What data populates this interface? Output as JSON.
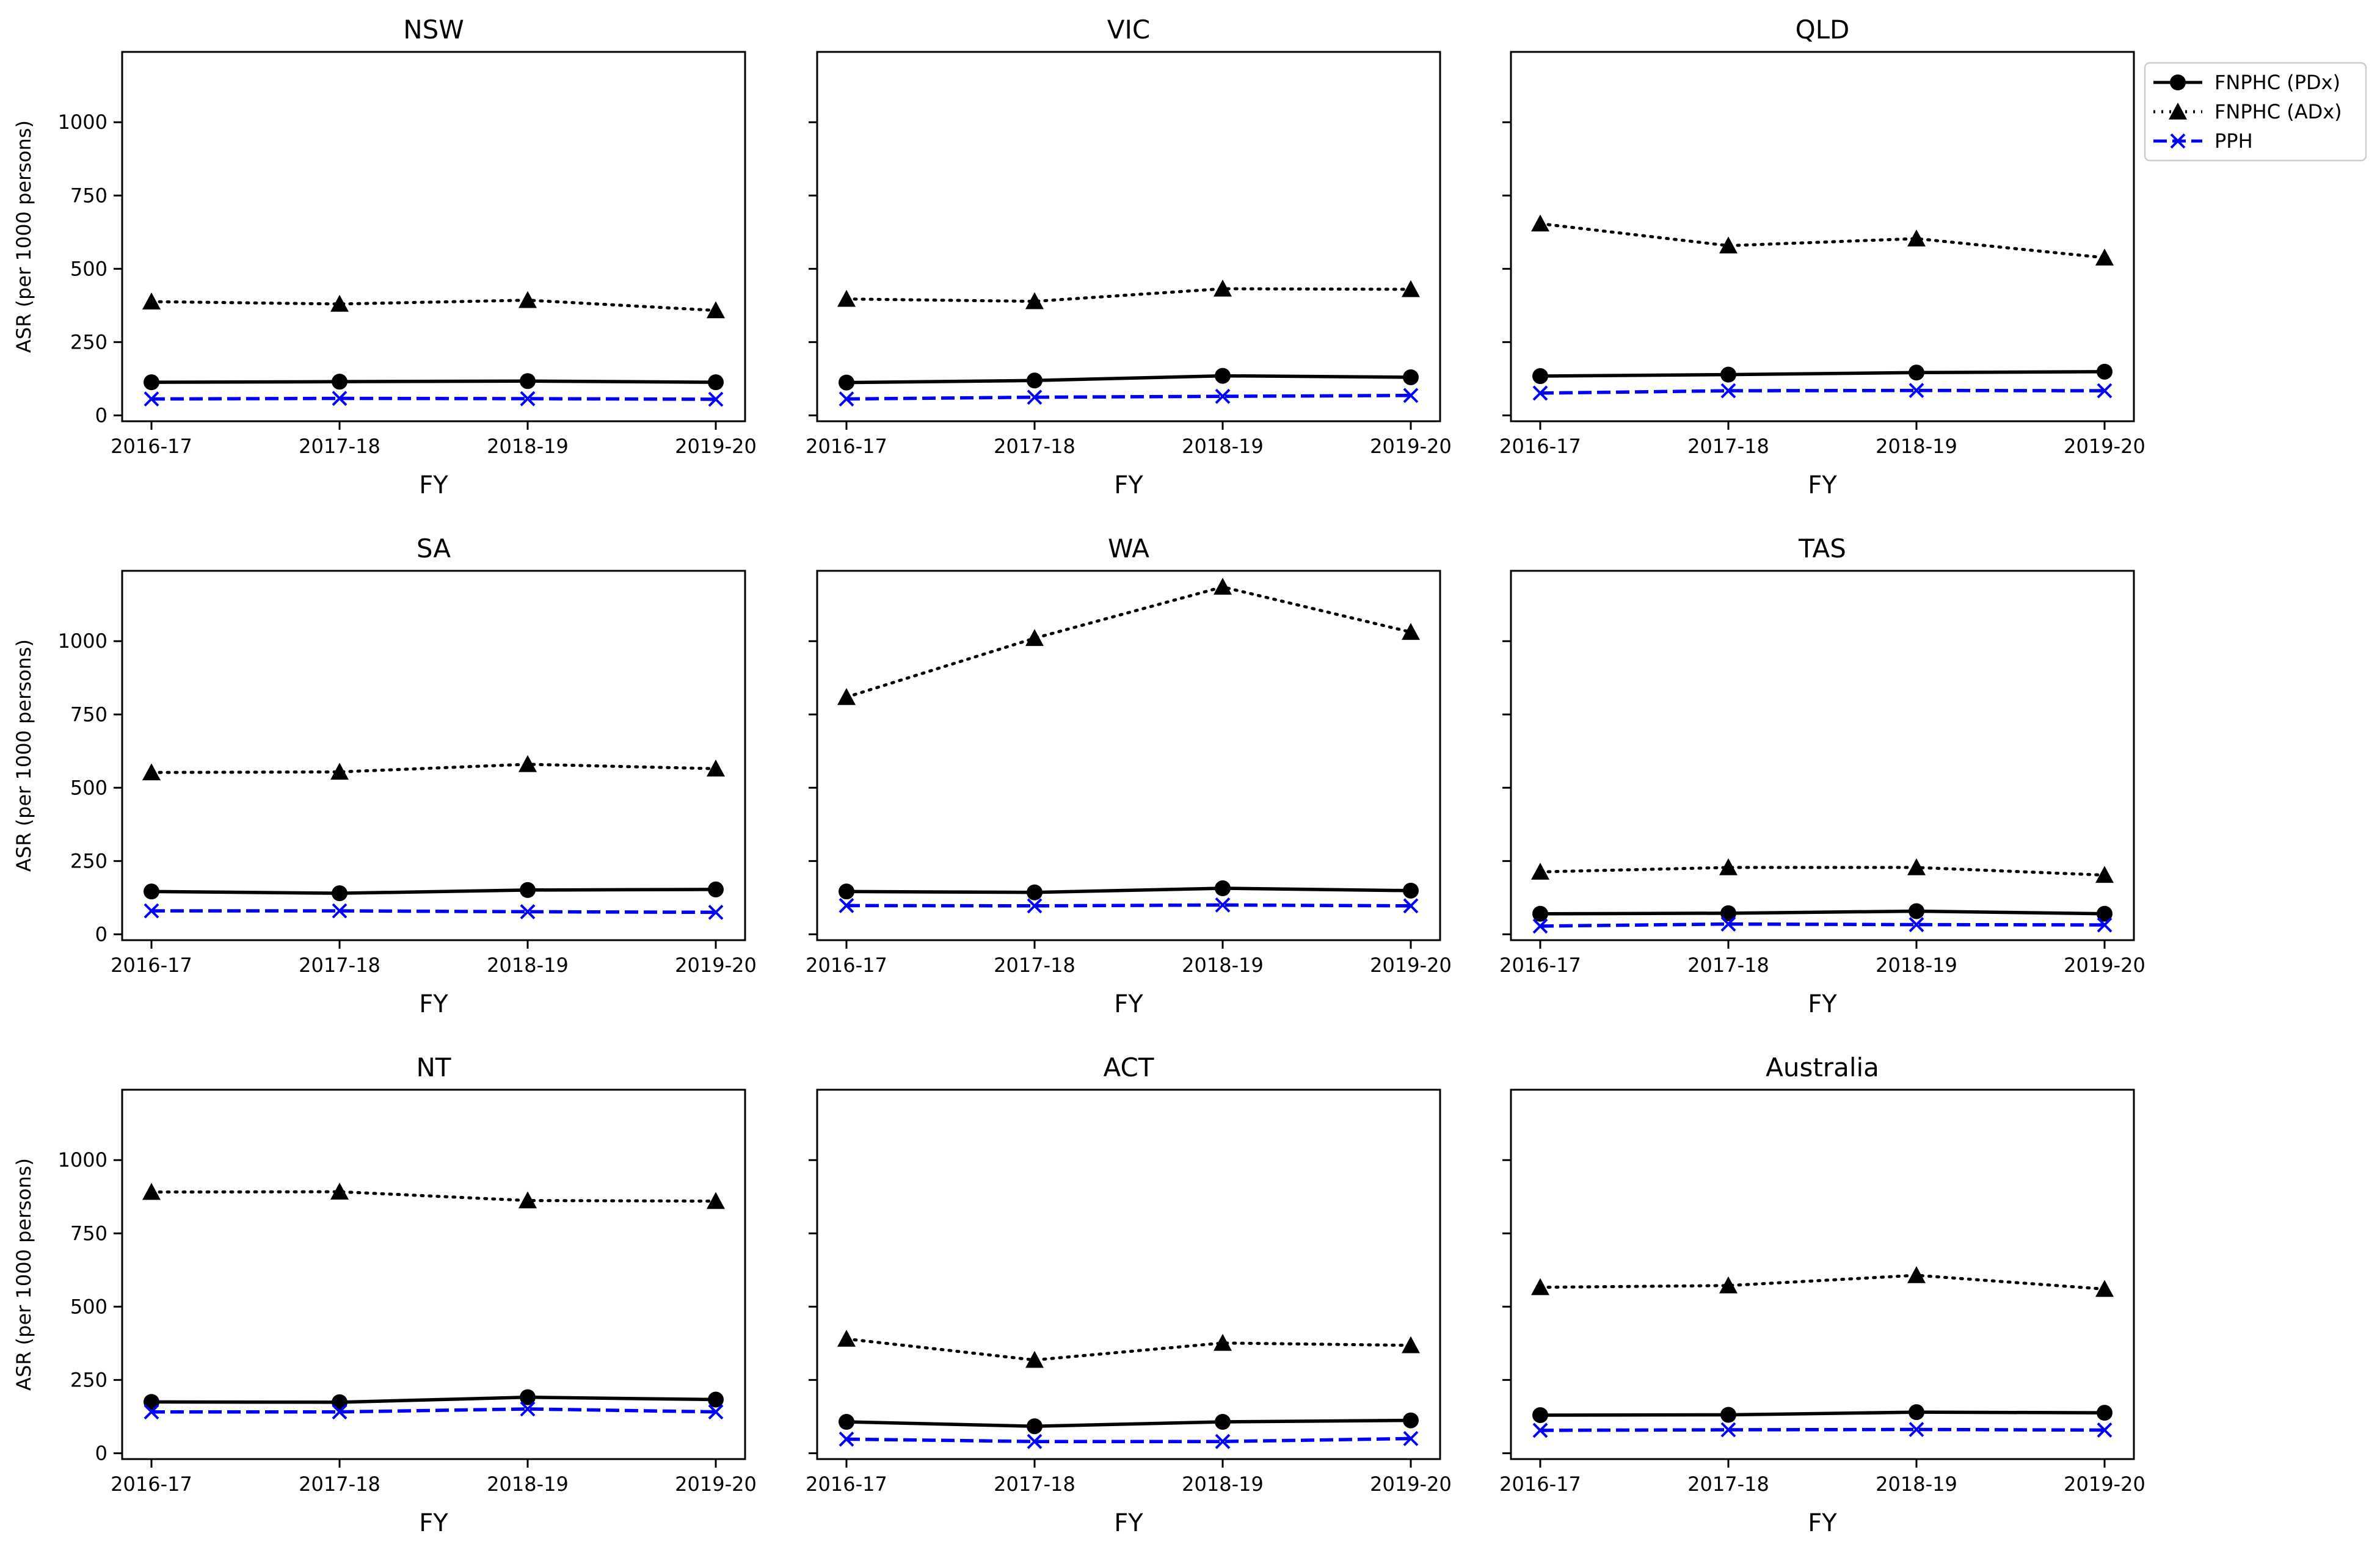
{
  "chart_data": {
    "type": "line",
    "layout": "3x3 small multiples",
    "categories": [
      "2016-17",
      "2017-18",
      "2018-19",
      "2019-20"
    ],
    "xlabel": "FY",
    "ylabel": "ASR (per 1000 persons)",
    "ylim": [
      -20,
      1240
    ],
    "yticks": [
      0,
      250,
      500,
      750,
      1000
    ],
    "grid": false,
    "legend": {
      "placement": "outside-top-right"
    },
    "series_styles": [
      {
        "name": "FNPHC (PDx)",
        "color": "#000000",
        "line": "solid",
        "marker": "circle"
      },
      {
        "name": "FNPHC (ADx)",
        "color": "#000000",
        "line": "dotted",
        "marker": "triangle"
      },
      {
        "name": "PPH",
        "color": "#0000ff",
        "line": "dashed",
        "marker": "x"
      }
    ],
    "panels": [
      {
        "title": "NSW",
        "series": [
          {
            "name": "FNPHC (PDx)",
            "values": [
              113,
              115,
              117,
              113
            ]
          },
          {
            "name": "FNPHC (ADx)",
            "values": [
              388,
              380,
              393,
              358
            ]
          },
          {
            "name": "PPH",
            "values": [
              56,
              58,
              57,
              55
            ]
          }
        ]
      },
      {
        "title": "VIC",
        "series": [
          {
            "name": "FNPHC (PDx)",
            "values": [
              112,
              119,
              135,
              130
            ]
          },
          {
            "name": "FNPHC (ADx)",
            "values": [
              397,
              389,
              432,
              430
            ]
          },
          {
            "name": "PPH",
            "values": [
              56,
              62,
              65,
              68
            ]
          }
        ]
      },
      {
        "title": "QLD",
        "series": [
          {
            "name": "FNPHC (PDx)",
            "values": [
              134,
              139,
              146,
              149
            ]
          },
          {
            "name": "FNPHC (ADx)",
            "values": [
              654,
              579,
              603,
              538
            ]
          },
          {
            "name": "PPH",
            "values": [
              76,
              84,
              85,
              84
            ]
          }
        ]
      },
      {
        "title": "SA",
        "series": [
          {
            "name": "FNPHC (PDx)",
            "values": [
              146,
              140,
              151,
              153
            ]
          },
          {
            "name": "FNPHC (ADx)",
            "values": [
              552,
              554,
              580,
              565
            ]
          },
          {
            "name": "PPH",
            "values": [
              80,
              80,
              77,
              75
            ]
          }
        ]
      },
      {
        "title": "WA",
        "series": [
          {
            "name": "FNPHC (PDx)",
            "values": [
              146,
              143,
              157,
              149
            ]
          },
          {
            "name": "FNPHC (ADx)",
            "values": [
              809,
              1010,
              1185,
              1031
            ]
          },
          {
            "name": "PPH",
            "values": [
              98,
              97,
              100,
              97
            ]
          }
        ]
      },
      {
        "title": "TAS",
        "series": [
          {
            "name": "FNPHC (PDx)",
            "values": [
              70,
              72,
              79,
              70
            ]
          },
          {
            "name": "FNPHC (ADx)",
            "values": [
              213,
              228,
              228,
              202
            ]
          },
          {
            "name": "PPH",
            "values": [
              28,
              35,
              33,
              32
            ]
          }
        ]
      },
      {
        "title": "NT",
        "series": [
          {
            "name": "FNPHC (PDx)",
            "values": [
              175,
              174,
              191,
              183
            ]
          },
          {
            "name": "FNPHC (ADx)",
            "values": [
              891,
              892,
              862,
              860
            ]
          },
          {
            "name": "PPH",
            "values": [
              141,
              141,
              151,
              141
            ]
          }
        ]
      },
      {
        "title": "ACT",
        "series": [
          {
            "name": "FNPHC (PDx)",
            "values": [
              107,
              92,
              107,
              112
            ]
          },
          {
            "name": "FNPHC (ADx)",
            "values": [
              390,
              318,
              376,
              368
            ]
          },
          {
            "name": "PPH",
            "values": [
              48,
              40,
              40,
              50
            ]
          }
        ]
      },
      {
        "title": "Australia",
        "series": [
          {
            "name": "FNPHC (PDx)",
            "values": [
              130,
              131,
              140,
              138
            ]
          },
          {
            "name": "FNPHC (ADx)",
            "values": [
              566,
              572,
              607,
              560
            ]
          },
          {
            "name": "PPH",
            "values": [
              78,
              80,
              81,
              79
            ]
          }
        ]
      }
    ]
  }
}
